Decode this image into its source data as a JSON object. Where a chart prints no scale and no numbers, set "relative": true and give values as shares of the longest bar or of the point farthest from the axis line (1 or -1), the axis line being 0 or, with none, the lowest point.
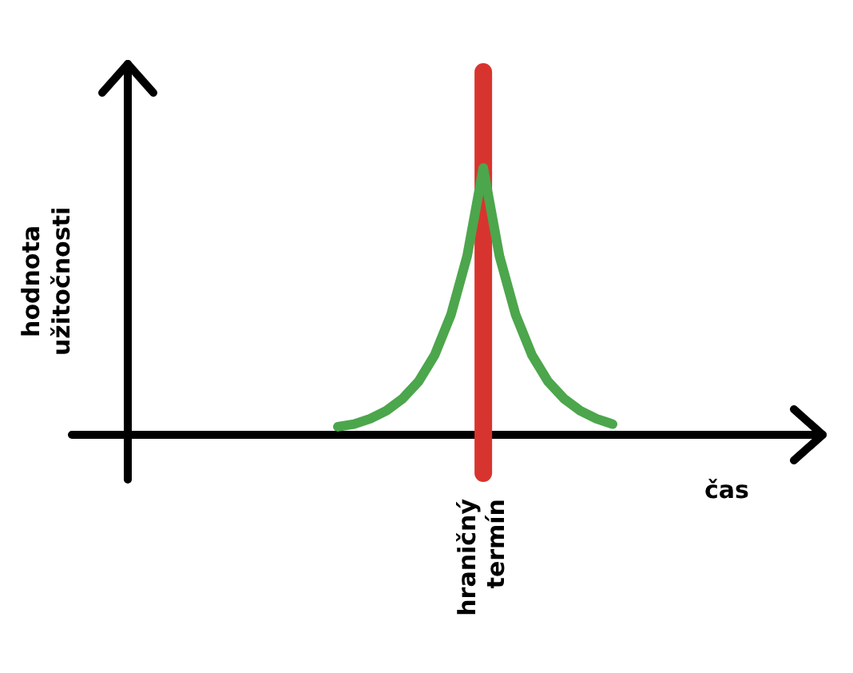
{
  "chart_data": {
    "type": "line",
    "relative": true,
    "xlabel": "čas",
    "ylabel": "hodnota užitočnosti",
    "tick_labels": false,
    "legend": false,
    "marker": "none",
    "line_style": "solid",
    "categories": [
      null,
      null,
      null,
      null,
      null,
      null,
      null,
      null,
      null,
      null,
      null,
      null,
      null,
      null,
      null,
      null,
      null,
      null,
      null,
      null,
      null,
      null,
      null,
      null,
      null,
      null,
      null,
      null,
      null,
      null,
      null,
      null,
      null,
      null,
      null,
      null,
      null,
      null,
      null,
      null,
      null,
      null,
      null,
      null
    ],
    "series": [
      {
        "color": "#4ca64c",
        "values": [
          null,
          null,
          null,
          null,
          null,
          null,
          null,
          null,
          null,
          null,
          null,
          null,
          null,
          0.03,
          0.04,
          0.06,
          0.09,
          0.135,
          0.2,
          0.3,
          0.45,
          0.67,
          1,
          0.67,
          0.45,
          0.3,
          0.2,
          0.135,
          0.09,
          0.06,
          0.04,
          null,
          null,
          null,
          null,
          null,
          null,
          null,
          null,
          null,
          null,
          null,
          null,
          null
        ]
      }
    ],
    "ref_lines": [
      {
        "axis": "x",
        "label": "hraničný termín",
        "color": "#d8342f"
      }
    ]
  }
}
